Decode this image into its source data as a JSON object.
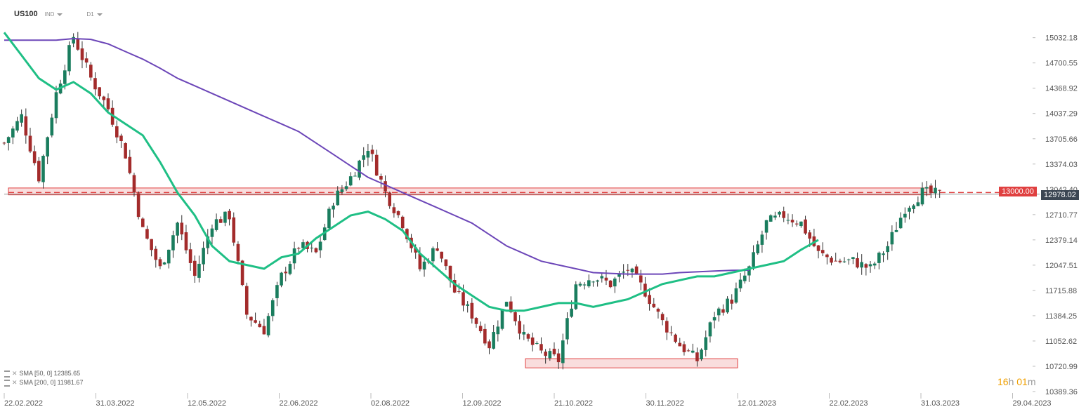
{
  "header": {
    "symbol": "US100",
    "instrument_type": "IND",
    "timeframe": "D1"
  },
  "chart_data": {
    "type": "candlestick",
    "x_ticks": [
      "22.02.2022",
      "31.03.2022",
      "12.05.2022",
      "22.06.2022",
      "02.08.2022",
      "12.09.2022",
      "21.10.2022",
      "30.11.2022",
      "12.01.2023",
      "22.02.2023",
      "31.03.2023",
      "29.04.2023"
    ],
    "y_ticks": [
      "15032.18",
      "14700.55",
      "14368.92",
      "14037.29",
      "13705.66",
      "13374.03",
      "13042.40",
      "12710.77",
      "12379.14",
      "12047.51",
      "11715.88",
      "11384.25",
      "11052.62",
      "10720.99",
      "10389.36"
    ],
    "y_range": [
      10389.36,
      15200
    ],
    "price_path": [
      [
        0,
        13650
      ],
      [
        4,
        14000
      ],
      [
        8,
        13200
      ],
      [
        12,
        14300
      ],
      [
        16,
        15050
      ],
      [
        20,
        14500
      ],
      [
        24,
        14100
      ],
      [
        28,
        13500
      ],
      [
        32,
        12500
      ],
      [
        36,
        12000
      ],
      [
        40,
        12600
      ],
      [
        44,
        11900
      ],
      [
        48,
        12600
      ],
      [
        52,
        12700
      ],
      [
        56,
        11400
      ],
      [
        60,
        11200
      ],
      [
        64,
        11900
      ],
      [
        68,
        12300
      ],
      [
        72,
        12200
      ],
      [
        76,
        12900
      ],
      [
        80,
        13200
      ],
      [
        84,
        13600
      ],
      [
        88,
        13000
      ],
      [
        92,
        12600
      ],
      [
        96,
        12000
      ],
      [
        100,
        12300
      ],
      [
        104,
        11700
      ],
      [
        108,
        11400
      ],
      [
        112,
        11000
      ],
      [
        116,
        11600
      ],
      [
        120,
        11100
      ],
      [
        124,
        10900
      ],
      [
        128,
        10800
      ],
      [
        132,
        11800
      ],
      [
        136,
        11900
      ],
      [
        140,
        11800
      ],
      [
        144,
        12000
      ],
      [
        148,
        11700
      ],
      [
        152,
        11300
      ],
      [
        156,
        11000
      ],
      [
        160,
        10800
      ],
      [
        164,
        11400
      ],
      [
        168,
        11600
      ],
      [
        172,
        12000
      ],
      [
        176,
        12600
      ],
      [
        180,
        12700
      ],
      [
        184,
        12600
      ],
      [
        188,
        12200
      ],
      [
        192,
        12100
      ],
      [
        196,
        12100
      ],
      [
        200,
        12000
      ],
      [
        204,
        12300
      ],
      [
        208,
        12800
      ],
      [
        212,
        13000
      ],
      [
        216,
        12978
      ]
    ],
    "sma_50": [
      [
        0,
        15100
      ],
      [
        4,
        14800
      ],
      [
        8,
        14500
      ],
      [
        12,
        14350
      ],
      [
        16,
        14450
      ],
      [
        20,
        14300
      ],
      [
        24,
        14050
      ],
      [
        28,
        13900
      ],
      [
        32,
        13750
      ],
      [
        36,
        13400
      ],
      [
        40,
        13000
      ],
      [
        44,
        12700
      ],
      [
        48,
        12300
      ],
      [
        52,
        12100
      ],
      [
        56,
        12050
      ],
      [
        60,
        12000
      ],
      [
        64,
        12150
      ],
      [
        68,
        12200
      ],
      [
        72,
        12400
      ],
      [
        76,
        12550
      ],
      [
        80,
        12700
      ],
      [
        84,
        12750
      ],
      [
        88,
        12650
      ],
      [
        92,
        12500
      ],
      [
        96,
        12200
      ],
      [
        100,
        12000
      ],
      [
        104,
        11800
      ],
      [
        108,
        11650
      ],
      [
        112,
        11500
      ],
      [
        116,
        11450
      ],
      [
        120,
        11450
      ],
      [
        124,
        11500
      ],
      [
        128,
        11550
      ],
      [
        132,
        11550
      ],
      [
        136,
        11500
      ],
      [
        140,
        11550
      ],
      [
        144,
        11600
      ],
      [
        148,
        11700
      ],
      [
        152,
        11800
      ],
      [
        156,
        11850
      ],
      [
        160,
        11900
      ],
      [
        164,
        11900
      ],
      [
        168,
        11950
      ],
      [
        172,
        12000
      ],
      [
        176,
        12050
      ],
      [
        180,
        12100
      ],
      [
        184,
        12250
      ],
      [
        188,
        12379
      ]
    ],
    "sma_200": [
      [
        0,
        15000
      ],
      [
        4,
        15000
      ],
      [
        8,
        15000
      ],
      [
        12,
        15000
      ],
      [
        16,
        15020
      ],
      [
        20,
        15010
      ],
      [
        24,
        14950
      ],
      [
        28,
        14850
      ],
      [
        32,
        14750
      ],
      [
        36,
        14630
      ],
      [
        40,
        14500
      ],
      [
        44,
        14400
      ],
      [
        48,
        14300
      ],
      [
        52,
        14200
      ],
      [
        56,
        14100
      ],
      [
        60,
        14000
      ],
      [
        64,
        13900
      ],
      [
        68,
        13800
      ],
      [
        72,
        13650
      ],
      [
        76,
        13500
      ],
      [
        80,
        13350
      ],
      [
        84,
        13200
      ],
      [
        88,
        13100
      ],
      [
        92,
        13000
      ],
      [
        96,
        12900
      ],
      [
        100,
        12800
      ],
      [
        104,
        12700
      ],
      [
        108,
        12600
      ],
      [
        112,
        12450
      ],
      [
        116,
        12300
      ],
      [
        120,
        12200
      ],
      [
        124,
        12100
      ],
      [
        128,
        12050
      ],
      [
        132,
        12000
      ],
      [
        136,
        11950
      ],
      [
        140,
        11940
      ],
      [
        144,
        11930
      ],
      [
        148,
        11930
      ],
      [
        152,
        11930
      ],
      [
        156,
        11950
      ],
      [
        160,
        11960
      ],
      [
        164,
        11970
      ],
      [
        168,
        11980
      ],
      [
        172,
        11982
      ]
    ],
    "resistance_zone": [
      12970,
      13060
    ],
    "support_zone": [
      10700,
      10820
    ],
    "horizontal_level": 13000.0,
    "current_price": 12978.02,
    "current_price_label": "12978.02",
    "level_label": "13000.00",
    "colors": {
      "bull": "#1a7d5e",
      "bear": "#a32b2b",
      "sma50": "#1fbf85",
      "sma200": "#6c46b8",
      "zone": "#e04040",
      "badge_dark": "#3c4653",
      "grid": "#e5e5e5"
    }
  },
  "legend": {
    "sma50_label": "SMA [50, 0] 12385.65",
    "sma200_label": "SMA [200, 0] 11981.67"
  },
  "timer": {
    "hours": "16",
    "hours_unit": "h",
    "minutes": "01",
    "minutes_unit": "m"
  }
}
